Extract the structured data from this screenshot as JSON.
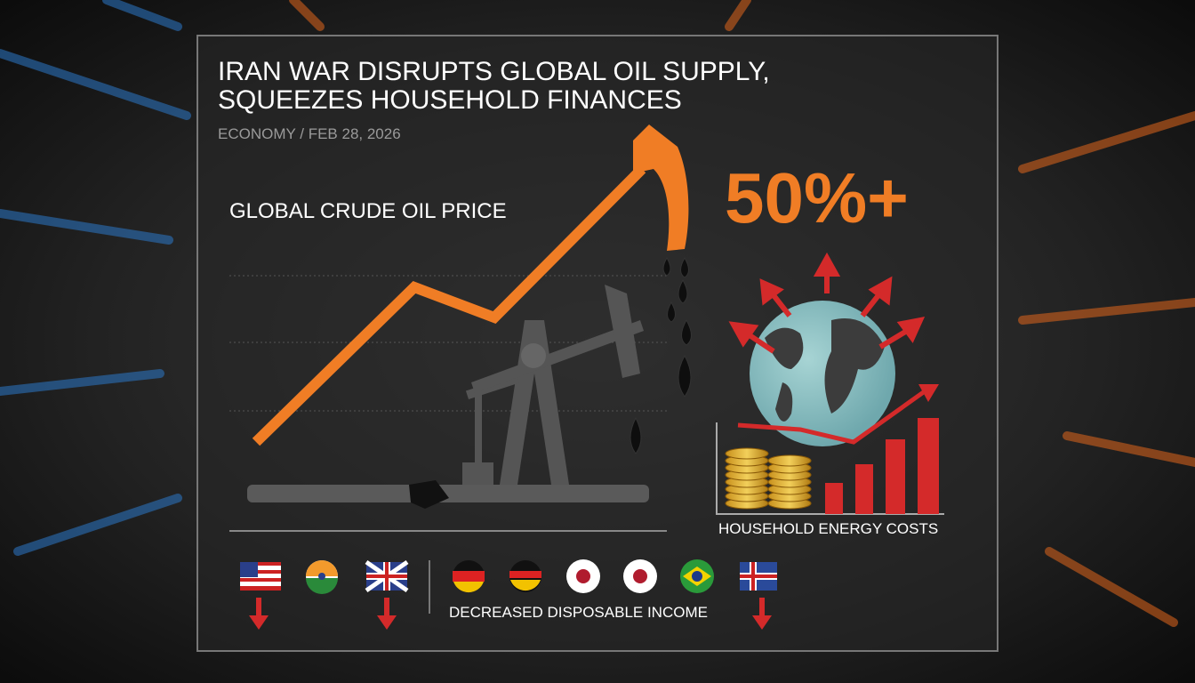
{
  "header": {
    "title_line1": "IRAN WAR DISRUPTS GLOBAL OIL SUPPLY,",
    "title_line2": "SQUEEZES HOUSEHOLD FINANCES",
    "byline": "ECONOMY / FEB 28, 2026"
  },
  "oil_panel": {
    "label": "GLOBAL CRUDE OIL PRICE",
    "callout": "50%+"
  },
  "costs_panel": {
    "label": "HOUSEHOLD ENERGY COSTS"
  },
  "income_panel": {
    "label": "DECREASED DISPOSABLE INCOME"
  }
}
